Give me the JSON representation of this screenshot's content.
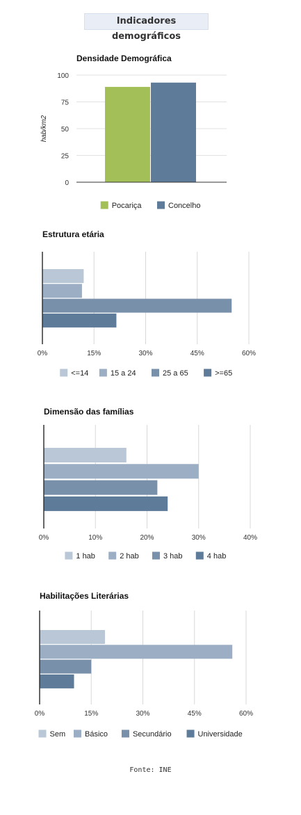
{
  "page": {
    "title": "Indicadores demográficos",
    "source": "Fonte: INE"
  },
  "chart_data": [
    {
      "type": "bar",
      "title": "Densidade Demográfica",
      "ylabel": "hab/km2",
      "xlabel": "",
      "ylim": [
        0,
        100
      ],
      "yticks": [
        "100",
        "75",
        "50",
        "25",
        "0"
      ],
      "series": [
        {
          "name": "Pocariça",
          "values": [
            89
          ],
          "color": "#a3bf57"
        },
        {
          "name": "Concelho",
          "values": [
            93
          ],
          "color": "#5e7c99"
        }
      ],
      "legend": "bottom"
    },
    {
      "type": "bar",
      "orientation": "horizontal",
      "title": "Estrutura etária",
      "xlim": [
        0,
        60
      ],
      "xticks": [
        "0%",
        "15%",
        "30%",
        "45%",
        "60%"
      ],
      "series": [
        {
          "name": "<=14",
          "values": [
            12
          ],
          "color": "#b9c7d6"
        },
        {
          "name": "15 a 24",
          "values": [
            11.5
          ],
          "color": "#9baec4"
        },
        {
          "name": "25 a 65",
          "values": [
            55
          ],
          "color": "#7990ab"
        },
        {
          "name": ">=65",
          "values": [
            21.5
          ],
          "color": "#5e7b99"
        }
      ],
      "grid": true,
      "legend": "bottom"
    },
    {
      "type": "bar",
      "orientation": "horizontal",
      "title": "Dimensão das famílias",
      "xlim": [
        0,
        40
      ],
      "xticks": [
        "0%",
        "10%",
        "20%",
        "30%",
        "40%"
      ],
      "series": [
        {
          "name": "1 hab",
          "values": [
            16
          ],
          "color": "#b9c7d6"
        },
        {
          "name": "2 hab",
          "values": [
            30
          ],
          "color": "#9baec4"
        },
        {
          "name": "3 hab",
          "values": [
            22
          ],
          "color": "#7990ab"
        },
        {
          "name": "4 hab",
          "values": [
            24
          ],
          "color": "#5e7b99"
        }
      ],
      "grid": true,
      "legend": "bottom"
    },
    {
      "type": "bar",
      "orientation": "horizontal",
      "title": "Habilitações Literárias",
      "xlim": [
        0,
        60
      ],
      "xticks": [
        "0%",
        "15%",
        "30%",
        "45%",
        "60%"
      ],
      "series": [
        {
          "name": "Sem",
          "values": [
            19
          ],
          "color": "#b9c7d6"
        },
        {
          "name": "Básico",
          "values": [
            56
          ],
          "color": "#9baec4"
        },
        {
          "name": "Secundário",
          "values": [
            15
          ],
          "color": "#7990ab"
        },
        {
          "name": "Universidade",
          "values": [
            10
          ],
          "color": "#5e7b99"
        }
      ],
      "grid": true,
      "legend": "bottom"
    }
  ]
}
